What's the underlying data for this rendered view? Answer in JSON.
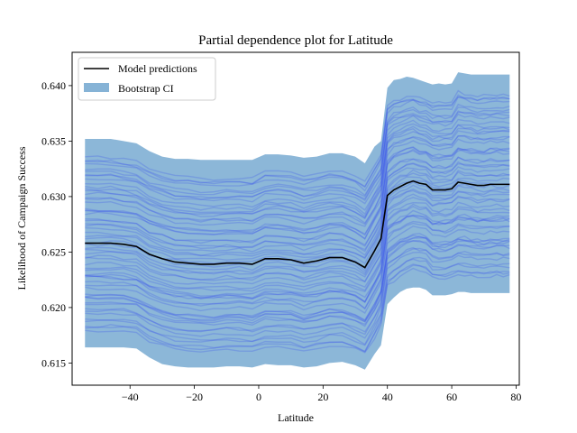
{
  "chart_data": {
    "type": "line",
    "title": "Partial dependence plot for Latitude",
    "xlabel": "Latitude",
    "ylabel": "Likelihood of Campaign Success",
    "xlim": [
      -58,
      81
    ],
    "ylim": [
      0.613,
      0.643
    ],
    "xticks": [
      -40,
      -20,
      0,
      20,
      40,
      60,
      80
    ],
    "xtick_labels": [
      "−40",
      "−20",
      "0",
      "20",
      "40",
      "60",
      "80"
    ],
    "yticks": [
      0.615,
      0.62,
      0.625,
      0.63,
      0.635,
      0.64
    ],
    "ytick_labels": [
      "0.615",
      "0.620",
      "0.625",
      "0.630",
      "0.635",
      "0.640"
    ],
    "grid": false,
    "legend_position": "top-left",
    "x": [
      -54,
      -50,
      -46,
      -42,
      -38,
      -34,
      -30,
      -26,
      -22,
      -18,
      -14,
      -10,
      -6,
      -2,
      2,
      6,
      10,
      14,
      18,
      22,
      26,
      30,
      33,
      36,
      38,
      40,
      42,
      44,
      46,
      48,
      50,
      52,
      54,
      56,
      58,
      60,
      62,
      64,
      66,
      68,
      70,
      72,
      74,
      76,
      78
    ],
    "series": [
      {
        "name": "Model predictions",
        "color": "#000000",
        "values": [
          0.6258,
          0.6258,
          0.6258,
          0.6257,
          0.6255,
          0.6248,
          0.6244,
          0.6241,
          0.624,
          0.6239,
          0.6239,
          0.624,
          0.624,
          0.6239,
          0.6244,
          0.6244,
          0.6243,
          0.624,
          0.6242,
          0.6245,
          0.6245,
          0.6241,
          0.6236,
          0.6251,
          0.6262,
          0.6301,
          0.6306,
          0.6309,
          0.6312,
          0.6314,
          0.6312,
          0.6311,
          0.6306,
          0.6306,
          0.6306,
          0.6307,
          0.6313,
          0.6312,
          0.6311,
          0.631,
          0.631,
          0.6311,
          0.6311,
          0.6311,
          0.6311
        ]
      },
      {
        "name": "Bootstrap CI",
        "color": "#86b3d6",
        "lower": [
          0.6164,
          0.6164,
          0.6164,
          0.6164,
          0.6163,
          0.6155,
          0.6149,
          0.6147,
          0.6146,
          0.6146,
          0.6146,
          0.6147,
          0.6147,
          0.6146,
          0.6149,
          0.6148,
          0.6148,
          0.6146,
          0.6147,
          0.615,
          0.6151,
          0.6148,
          0.6144,
          0.6158,
          0.6166,
          0.6203,
          0.6209,
          0.6214,
          0.6217,
          0.6218,
          0.6218,
          0.6216,
          0.6211,
          0.6211,
          0.6211,
          0.6212,
          0.6214,
          0.6214,
          0.6213,
          0.6213,
          0.6213,
          0.6213,
          0.6213,
          0.6213,
          0.6213
        ],
        "upper": [
          0.6352,
          0.6352,
          0.6352,
          0.635,
          0.6348,
          0.6341,
          0.6336,
          0.6334,
          0.6334,
          0.6333,
          0.6333,
          0.6333,
          0.6333,
          0.6333,
          0.6338,
          0.6338,
          0.6337,
          0.6335,
          0.6336,
          0.6339,
          0.6339,
          0.6336,
          0.633,
          0.6345,
          0.635,
          0.6398,
          0.6405,
          0.6406,
          0.6408,
          0.6407,
          0.6405,
          0.6403,
          0.6401,
          0.6402,
          0.6401,
          0.6402,
          0.6412,
          0.6411,
          0.641,
          0.641,
          0.641,
          0.641,
          0.641,
          0.641,
          0.641
        ]
      }
    ],
    "bootstrap_lines_color": "#2b3ff0",
    "bootstrap_lines_count": 60
  }
}
